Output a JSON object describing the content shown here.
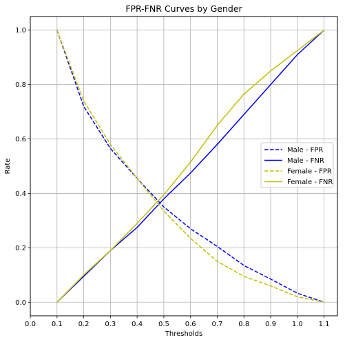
{
  "chart_data": {
    "type": "line",
    "title": "FPR-FNR Curves by Gender",
    "xlabel": "Thresholds",
    "ylabel": "Rate",
    "xlim": [
      0.0,
      1.15
    ],
    "ylim": [
      -0.05,
      1.05
    ],
    "xticks": [
      "0.0",
      "0.1",
      "0.2",
      "0.3",
      "0.4",
      "0.5",
      "0.6",
      "0.7",
      "0.8",
      "0.9",
      "1.0",
      "1.1"
    ],
    "yticks": [
      "0.0",
      "0.2",
      "0.4",
      "0.6",
      "0.8",
      "1.0"
    ],
    "grid": true,
    "legend_position": "center-right",
    "x": [
      0.1,
      0.2,
      0.3,
      0.4,
      0.5,
      0.6,
      0.7,
      0.8,
      0.9,
      1.0,
      1.1
    ],
    "series": [
      {
        "name": "Male - FPR",
        "color": "#0000ff",
        "dash": "dashed",
        "values": [
          1.0,
          0.72,
          0.565,
          0.455,
          0.35,
          0.27,
          0.205,
          0.135,
          0.085,
          0.033,
          0.0
        ]
      },
      {
        "name": "Male - FNR",
        "color": "#0000ff",
        "dash": "solid",
        "values": [
          0.0,
          0.095,
          0.19,
          0.275,
          0.38,
          0.475,
          0.58,
          0.69,
          0.8,
          0.91,
          1.0
        ]
      },
      {
        "name": "Female - FPR",
        "color": "#bfbf00",
        "dash": "dashed",
        "values": [
          1.0,
          0.74,
          0.58,
          0.455,
          0.335,
          0.235,
          0.15,
          0.095,
          0.06,
          0.02,
          0.0
        ]
      },
      {
        "name": "Female - FNR",
        "color": "#bfbf00",
        "dash": "solid",
        "values": [
          0.0,
          0.1,
          0.19,
          0.29,
          0.395,
          0.515,
          0.65,
          0.765,
          0.85,
          0.925,
          1.0
        ]
      }
    ]
  }
}
